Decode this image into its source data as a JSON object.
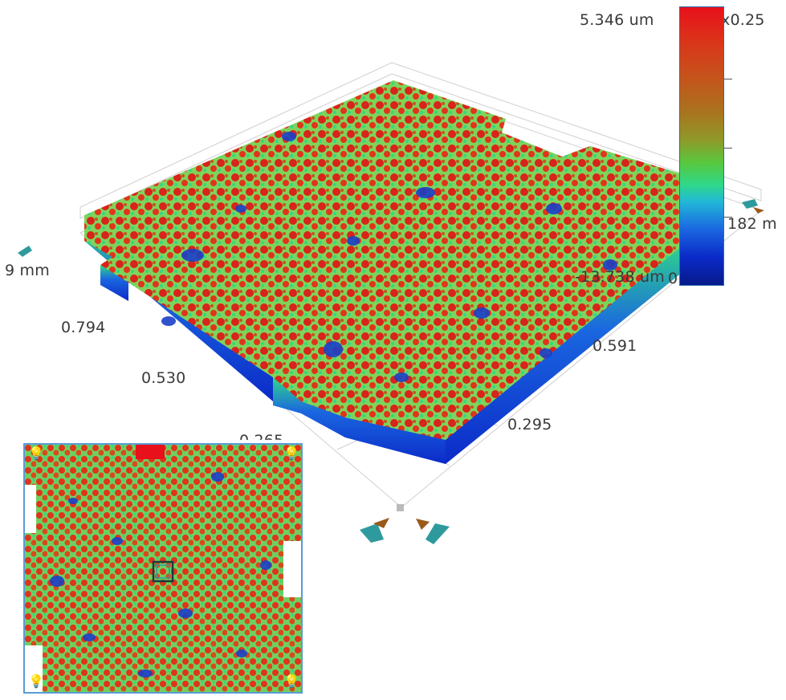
{
  "axes": {
    "x_labels": [
      "0.794",
      "0.530",
      "0.265"
    ],
    "y_labels": [
      "0.591",
      "0.295"
    ],
    "left_axis_unit": "9 mm",
    "right_axis_fragment": "182 m"
  },
  "colorbar": {
    "max_label": "5.346 um",
    "min_label": "-13.738 um",
    "scale_label": "x0.25",
    "zero_label": "0",
    "colors": [
      "#e8101a",
      "#c4551c",
      "#8f9a2a",
      "#58c83e",
      "#2fd88a",
      "#22b8d8",
      "#1a66e0",
      "#061a8a"
    ]
  },
  "icons": {
    "rotate_left": "rotate-left-icon",
    "rotate_right": "rotate-right-icon",
    "tilt": "tilt-icon",
    "light": "lightbulb-icon"
  },
  "palette": {
    "surface_high": "#d8241a",
    "surface_mid": "#7fd35a",
    "surface_low": "#1b3fc8",
    "grid": "#c8c8c8"
  }
}
